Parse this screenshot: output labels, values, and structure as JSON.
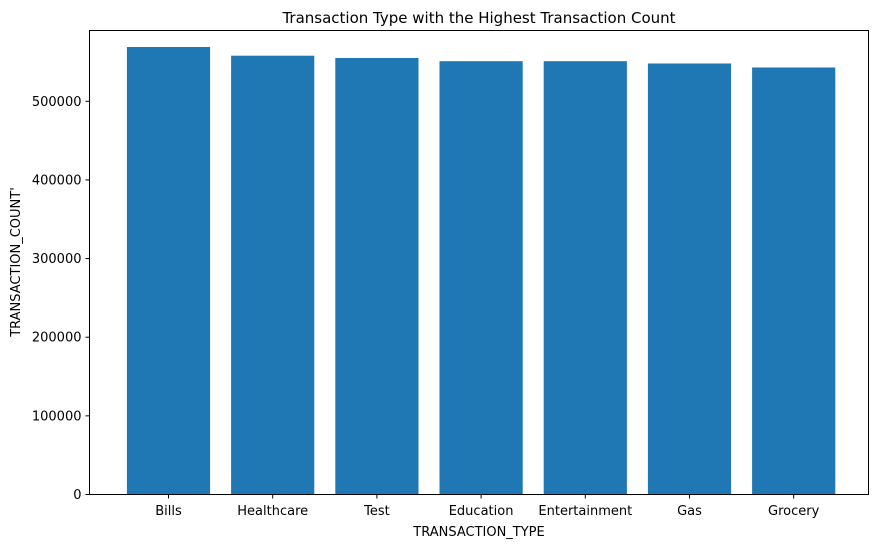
{
  "chart_data": {
    "type": "bar",
    "title": "Transaction Type with the Highest Transaction Count",
    "xlabel": "TRANSACTION_TYPE",
    "ylabel": "TRANSACTION_COUNT'",
    "categories": [
      "Bills",
      "Healthcare",
      "Test",
      "Education",
      "Entertainment",
      "Gas",
      "Grocery"
    ],
    "values": [
      569000,
      558000,
      555000,
      551000,
      551000,
      548000,
      543000
    ],
    "ylim": [
      0,
      590000
    ],
    "yticks": [
      0,
      100000,
      200000,
      300000,
      400000,
      500000
    ],
    "bar_color": "#1f77b4",
    "grid": false,
    "legend": "none"
  }
}
